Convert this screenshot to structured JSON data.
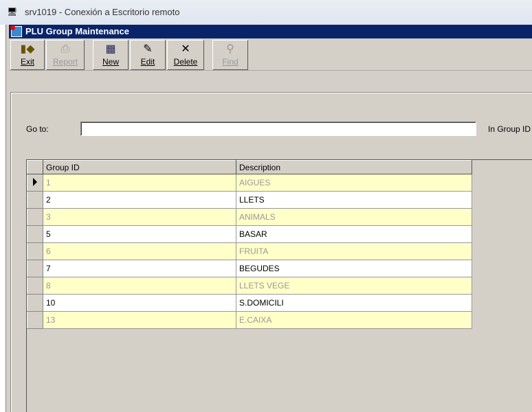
{
  "rdp_title": "srv1019 - Conexión a Escritorio remoto",
  "window_title": "PLU Group Maintenance",
  "toolbar": [
    {
      "label": "Exit",
      "icon": "exit-door-icon",
      "enabled": true
    },
    {
      "label": "Report",
      "icon": "printer-icon",
      "enabled": false
    },
    {
      "label": "New",
      "icon": "new-record-icon",
      "enabled": true
    },
    {
      "label": "Edit",
      "icon": "edit-icon",
      "enabled": true
    },
    {
      "label": "Delete",
      "icon": "delete-x-icon",
      "enabled": true
    },
    {
      "label": "Find",
      "icon": "binoculars-icon",
      "enabled": false
    }
  ],
  "goto": {
    "label": "Go to:",
    "value": "",
    "in_label": "In Group ID"
  },
  "grid": {
    "columns": [
      "Group ID",
      "Description"
    ],
    "rows": [
      [
        "1",
        "AIGUES"
      ],
      [
        "2",
        "LLETS"
      ],
      [
        "3",
        "ANIMALS"
      ],
      [
        "5",
        "BASAR"
      ],
      [
        "6",
        "FRUITA"
      ],
      [
        "7",
        "BEGUDES"
      ],
      [
        "8",
        "LLETS VEGE"
      ],
      [
        "10",
        "S.DOMICILI"
      ],
      [
        "13",
        "E.CAIXA"
      ]
    ],
    "selected_row": 0
  }
}
